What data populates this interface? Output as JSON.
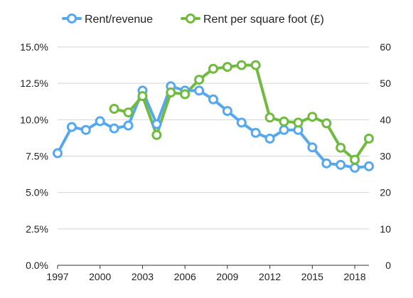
{
  "chart_data": {
    "type": "line",
    "title": "",
    "xlabel": "",
    "ylabel": "",
    "y2label": "",
    "xlim": [
      1997,
      2019
    ],
    "ylim": [
      0,
      15
    ],
    "y2lim": [
      0,
      60
    ],
    "x_ticks": [
      "1997",
      "2000",
      "2003",
      "2006",
      "2009",
      "2012",
      "2015",
      "2018"
    ],
    "y_ticks": [
      "0.0%",
      "2.5%",
      "5.0%",
      "7.5%",
      "10.0%",
      "12.5%",
      "15.0%"
    ],
    "y2_ticks": [
      "0",
      "10",
      "20",
      "30",
      "40",
      "50",
      "60"
    ],
    "grid": "horizontal",
    "legend": "top",
    "series": [
      {
        "name": "Rent/revenue",
        "axis": "left",
        "color": "#56a8ee",
        "x": [
          1997,
          1998,
          1999,
          2000,
          2001,
          2002,
          2003,
          2004,
          2005,
          2006,
          2007,
          2008,
          2009,
          2010,
          2011,
          2012,
          2013,
          2014,
          2015,
          2016,
          2017,
          2018,
          2019
        ],
        "values": [
          7.7,
          9.5,
          9.3,
          9.9,
          9.4,
          9.6,
          12.0,
          9.7,
          12.3,
          12.0,
          12.0,
          11.4,
          10.6,
          9.8,
          9.1,
          8.7,
          9.3,
          9.3,
          8.1,
          7.0,
          6.9,
          6.7,
          6.8
        ]
      },
      {
        "name": "Rent per square foot (£)",
        "axis": "right",
        "color": "#70bb3f",
        "x": [
          2001,
          2002,
          2003,
          2004,
          2005,
          2006,
          2007,
          2008,
          2009,
          2010,
          2011,
          2012,
          2013,
          2014,
          2015,
          2016,
          2017,
          2018,
          2019
        ],
        "values": [
          43.0,
          42.0,
          46.5,
          35.8,
          47.5,
          47.0,
          51.0,
          54.0,
          54.5,
          55.0,
          55.0,
          40.6,
          39.5,
          39.2,
          40.8,
          39.0,
          32.3,
          29.0,
          34.8
        ]
      }
    ]
  }
}
